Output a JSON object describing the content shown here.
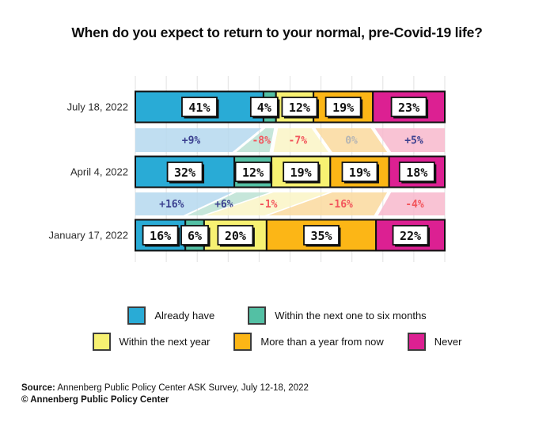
{
  "chart_data": {
    "type": "stacked-bar-flow",
    "title": "When do you expect to return to your normal, pre-Covid-19 life?",
    "x_axis": {
      "min": 0,
      "max": 100,
      "unit": "%",
      "gridline_step": 10,
      "grid": true
    },
    "categories": [
      {
        "label": "Already have",
        "color": "#29ABD6",
        "band_color": "#B5D8EF"
      },
      {
        "label": "Within the next one to six months",
        "color": "#53C0A4",
        "band_color": "#BCE2D3"
      },
      {
        "label": "Within the next year",
        "color": "#F7F172",
        "band_color": "#FAF5C5"
      },
      {
        "label": "More than a year from now",
        "color": "#FCB616",
        "band_color": "#FAD99E"
      },
      {
        "label": "Never",
        "color": "#DC2092",
        "band_color": "#F8B9CD"
      }
    ],
    "rows": [
      {
        "label": "July 18, 2022",
        "values_pct": [
          41,
          4,
          12,
          19,
          23
        ]
      },
      {
        "label": "April 4, 2022",
        "values_pct": [
          32,
          12,
          19,
          19,
          18
        ]
      },
      {
        "label": "January 17, 2022",
        "values_pct": [
          16,
          6,
          20,
          35,
          22
        ]
      }
    ],
    "change_bands": [
      {
        "from_row": "April 4, 2022",
        "to_row": "July 18, 2022",
        "labels": [
          "+9%",
          "-8%",
          "-7%",
          "0%",
          "+5%"
        ]
      },
      {
        "from_row": "January 17, 2022",
        "to_row": "April 4, 2022",
        "labels": [
          "+16%",
          "+6%",
          "-1%",
          "-16%",
          "-4%"
        ]
      }
    ],
    "change_label_colors": {
      "positive": "#3A3F8F",
      "negative": "#F2555C",
      "zero": "#B4B4B4"
    }
  },
  "legend": {
    "rows": [
      [
        {
          "label": "Already have",
          "color": "#29ABD6"
        },
        {
          "label": "Within the next one to six months",
          "color": "#53C0A4"
        }
      ],
      [
        {
          "label": "Within the next year",
          "color": "#F7F172"
        },
        {
          "label": "More than a year from now",
          "color": "#FCB616"
        },
        {
          "label": "Never",
          "color": "#DC2092"
        }
      ]
    ]
  },
  "source": {
    "prefix": "Source:",
    "text": "Annenberg Public Policy Center ASK Survey, July 12-18, 2022",
    "copyright": "© Annenberg Public Policy Center"
  }
}
